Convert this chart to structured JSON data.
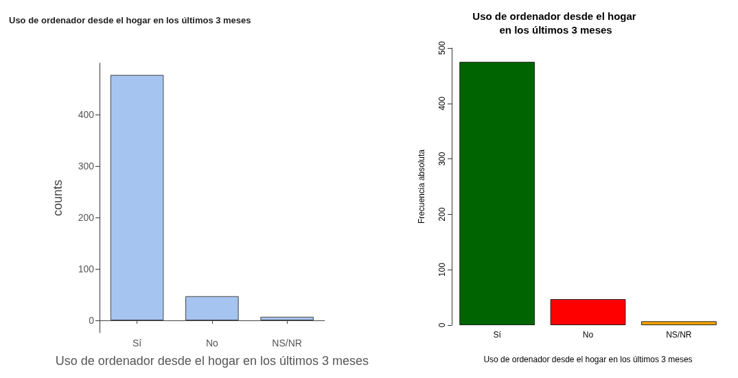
{
  "chart_data": [
    {
      "type": "bar",
      "title": "Uso de ordenador desde el hogar en los últimos 3 meses",
      "xlabel": "Uso de ordenador desde el hogar en los últimos 3 meses",
      "ylabel": "counts",
      "categories": [
        "Sí",
        "No",
        "NS/NR"
      ],
      "values": [
        477,
        47,
        7
      ],
      "colors": [
        "#a6c4f0",
        "#a6c4f0",
        "#a6c4f0"
      ],
      "ylim": [
        -24,
        500
      ],
      "yticks": [
        0,
        100,
        200,
        300,
        400
      ]
    },
    {
      "type": "bar",
      "title": "Uso de ordenador desde el hogar en los últimos 3 meses",
      "xlabel": "Uso de ordenador desde el hogar en los últimos 3 meses",
      "ylabel": "Frecuencia absoluta",
      "categories": [
        "Sí",
        "No",
        "NS/NR"
      ],
      "values": [
        475,
        47,
        7
      ],
      "colors": [
        "#006400",
        "#ff0000",
        "#ffa500"
      ],
      "ylim": [
        0,
        500
      ],
      "yticks": [
        0,
        100,
        200,
        300,
        400,
        500
      ]
    }
  ]
}
